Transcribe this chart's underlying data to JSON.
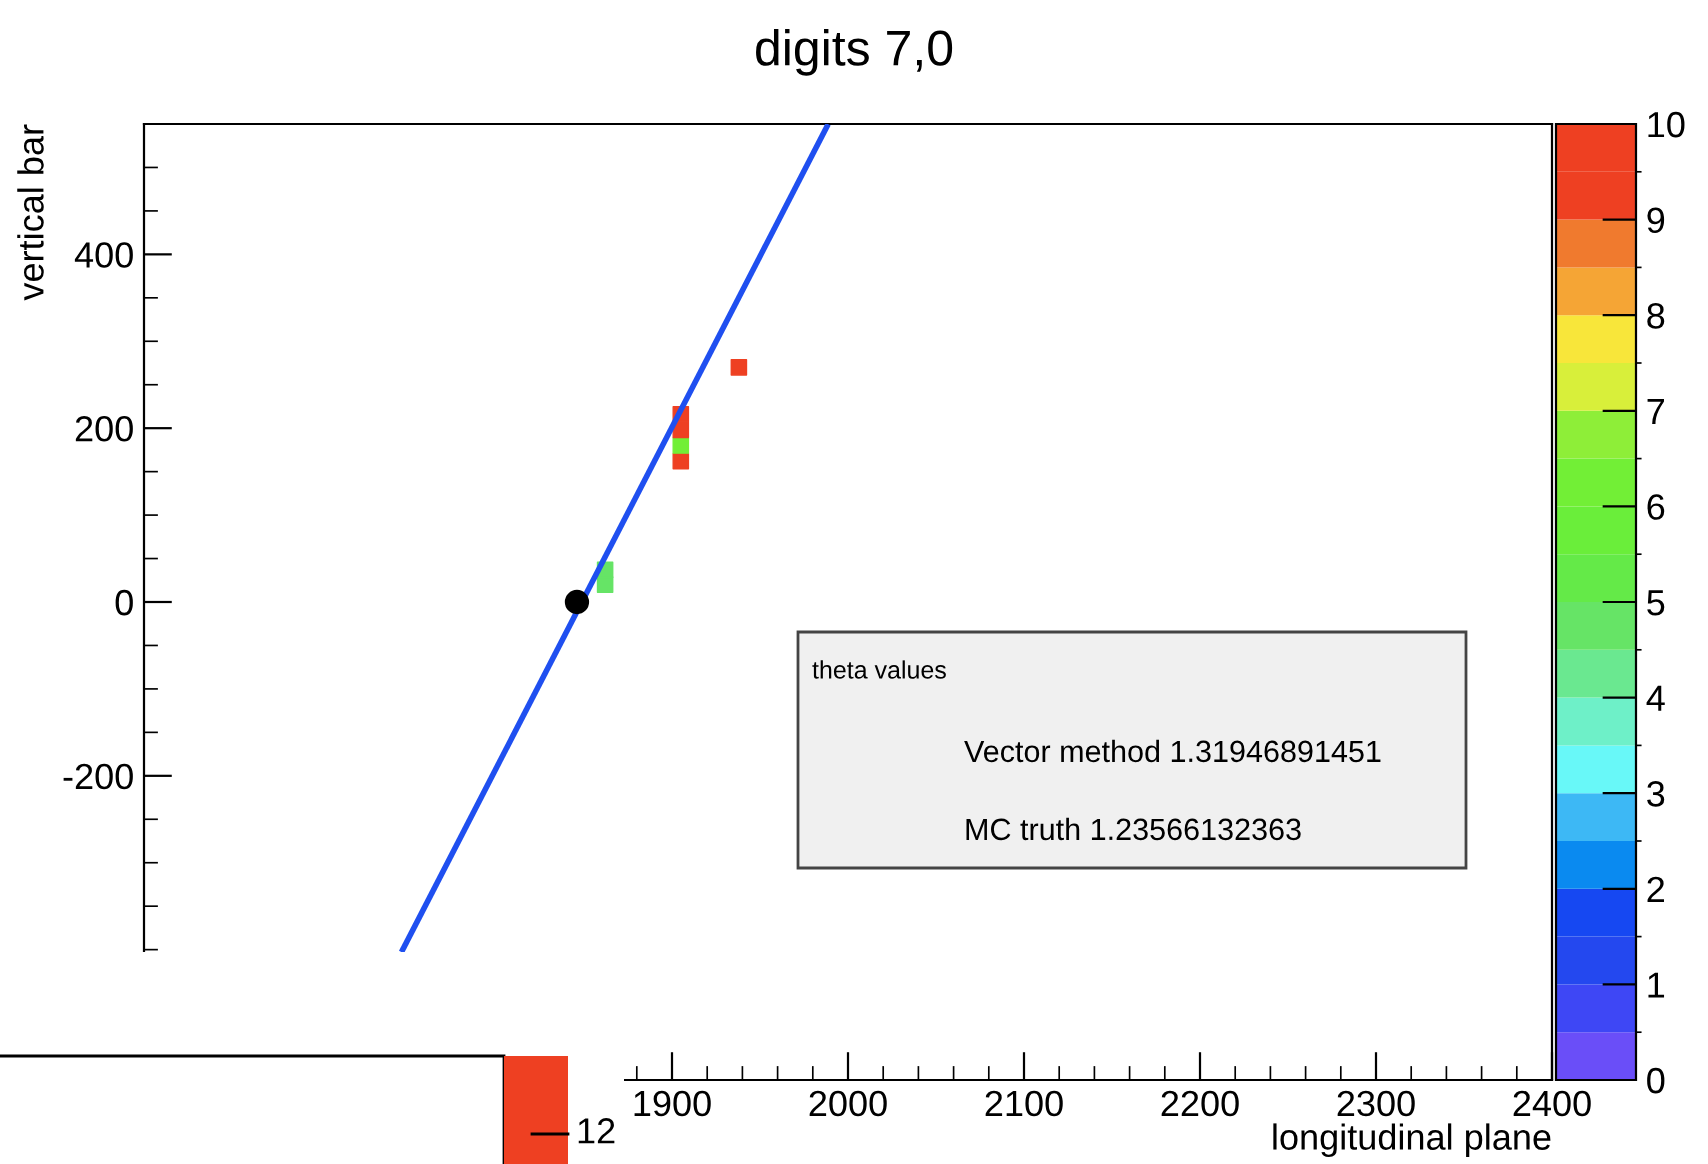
{
  "chart_data": {
    "type": "scatter",
    "title": "digits 7,0",
    "xlabel": "longitudinal plane",
    "ylabel": "vertical bar",
    "xlim": [
      1600,
      2400
    ],
    "xticks": [
      1900,
      2000,
      2100,
      2200,
      2300,
      2400
    ],
    "ylim": [
      -550,
      550
    ],
    "yticks": [
      -200,
      0,
      200,
      400
    ],
    "clim": [
      0,
      10
    ],
    "cticks": [
      0,
      1,
      2,
      3,
      4,
      5,
      6,
      7,
      8,
      9,
      10
    ],
    "grid": false,
    "series": [
      {
        "type": "scatter",
        "marker": "square",
        "x": [
          1862,
          1862,
          1905,
          1905,
          1905,
          1905,
          1938
        ],
        "values": [
          20,
          37,
          162,
          180,
          198,
          216,
          270
        ],
        "cvalues": [
          4.5,
          4.5,
          9.5,
          6,
          9.5,
          9.5,
          9.5
        ],
        "colors": [
          "#66e466",
          "#66e466",
          "#ee4022",
          "#72ef36",
          "#ee4022",
          "#ee4022",
          "#ee4022"
        ]
      },
      {
        "type": "line",
        "color": "#1f4ff0",
        "x": [
          1747,
          1988
        ],
        "values": [
          -400,
          547
        ]
      },
      {
        "type": "scatter",
        "marker": "circle",
        "color": "#000000",
        "x": [
          1846
        ],
        "values": [
          0
        ]
      }
    ],
    "annotations": [
      "theta values",
      "Vector method 1.31946891451",
      "MC truth 1.23566132363",
      "12"
    ]
  }
}
